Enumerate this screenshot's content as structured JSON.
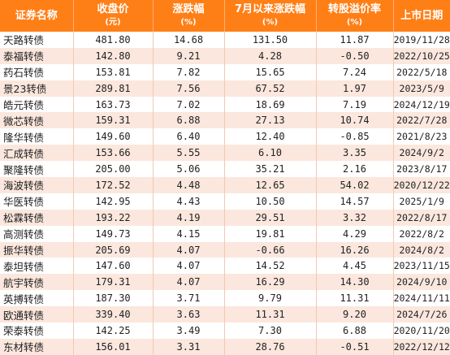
{
  "header": {
    "col_name": "证券名称",
    "col_close": "收盘价",
    "col_close_unit": "(元)",
    "col_change": "涨跌幅",
    "col_change_unit": "(%)",
    "col_since_july": "7月以来涨跌幅",
    "col_since_july_unit": "(%)",
    "col_premium": "转股溢价率",
    "col_premium_unit": "(%)",
    "col_listing": "上市日期"
  },
  "rows": [
    {
      "name": "天路转债",
      "close": "481.80",
      "change": "14.68",
      "since_july": "131.50",
      "premium": "11.87",
      "listing": "2019/11/28"
    },
    {
      "name": "泰福转债",
      "close": "142.80",
      "change": "9.21",
      "since_july": "4.28",
      "premium": "-0.50",
      "listing": "2022/10/25"
    },
    {
      "name": "药石转债",
      "close": "153.81",
      "change": "7.82",
      "since_july": "15.65",
      "premium": "7.24",
      "listing": "2022/5/18"
    },
    {
      "name": "景23转债",
      "close": "289.81",
      "change": "7.56",
      "since_july": "67.52",
      "premium": "1.97",
      "listing": "2023/5/9"
    },
    {
      "name": "皓元转债",
      "close": "163.73",
      "change": "7.02",
      "since_july": "18.69",
      "premium": "7.19",
      "listing": "2024/12/19"
    },
    {
      "name": "微芯转债",
      "close": "159.31",
      "change": "6.88",
      "since_july": "27.13",
      "premium": "10.74",
      "listing": "2022/7/28"
    },
    {
      "name": "隆华转债",
      "close": "149.60",
      "change": "6.40",
      "since_july": "12.40",
      "premium": "-0.85",
      "listing": "2021/8/23"
    },
    {
      "name": "汇成转债",
      "close": "153.66",
      "change": "5.55",
      "since_july": "6.10",
      "premium": "3.35",
      "listing": "2024/9/2"
    },
    {
      "name": "聚隆转债",
      "close": "205.00",
      "change": "5.06",
      "since_july": "35.21",
      "premium": "2.16",
      "listing": "2023/8/17"
    },
    {
      "name": "海波转债",
      "close": "172.52",
      "change": "4.48",
      "since_july": "12.65",
      "premium": "54.02",
      "listing": "2020/12/22"
    },
    {
      "name": "华医转债",
      "close": "142.95",
      "change": "4.43",
      "since_july": "10.50",
      "premium": "14.57",
      "listing": "2025/1/9"
    },
    {
      "name": "松霖转债",
      "close": "193.22",
      "change": "4.19",
      "since_july": "29.51",
      "premium": "3.32",
      "listing": "2022/8/17"
    },
    {
      "name": "高测转债",
      "close": "149.73",
      "change": "4.15",
      "since_july": "19.81",
      "premium": "4.29",
      "listing": "2022/8/2"
    },
    {
      "name": "振华转债",
      "close": "205.69",
      "change": "4.07",
      "since_july": "-0.66",
      "premium": "16.26",
      "listing": "2024/8/2"
    },
    {
      "name": "泰坦转债",
      "close": "147.60",
      "change": "4.07",
      "since_july": "14.52",
      "premium": "4.45",
      "listing": "2023/11/15"
    },
    {
      "name": "航宇转债",
      "close": "179.31",
      "change": "4.07",
      "since_july": "16.29",
      "premium": "14.30",
      "listing": "2024/9/10"
    },
    {
      "name": "英搏转债",
      "close": "187.30",
      "change": "3.71",
      "since_july": "9.79",
      "premium": "11.31",
      "listing": "2024/11/11"
    },
    {
      "name": "欧通转债",
      "close": "339.40",
      "change": "3.63",
      "since_july": "11.31",
      "premium": "9.20",
      "listing": "2024/7/26"
    },
    {
      "name": "荣泰转债",
      "close": "142.25",
      "change": "3.49",
      "since_july": "7.30",
      "premium": "6.88",
      "listing": "2020/11/20"
    },
    {
      "name": "东材转债",
      "close": "156.01",
      "change": "3.31",
      "since_july": "28.76",
      "premium": "-0.51",
      "listing": "2022/12/12"
    }
  ]
}
